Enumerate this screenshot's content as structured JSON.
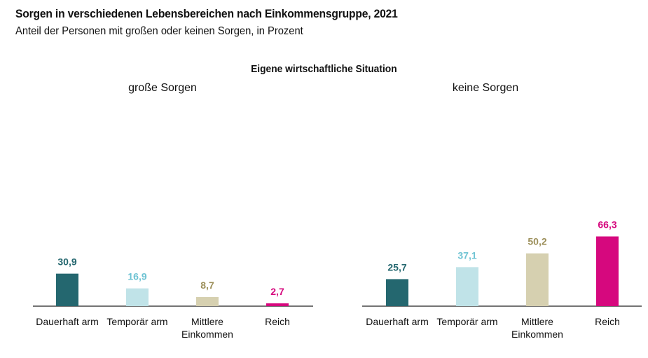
{
  "title": "Sorgen in verschiedenen Lebensbereichen nach Einkommensgruppe, 2021",
  "subtitle": "Anteil der Personen mit großen oder keinen Sorgen, in Prozent",
  "section_title": "Eigene wirtschaftliche Situation",
  "chart_data": [
    {
      "type": "bar",
      "title": "große Sorgen",
      "categories": [
        "Dauerhaft arm",
        "Temporär arm",
        "Mittlere Einkommen",
        "Reich"
      ],
      "values": [
        30.9,
        16.9,
        8.7,
        2.7
      ],
      "value_labels": [
        "30,9",
        "16,9",
        "8,7",
        "2,7"
      ],
      "colors": [
        "#24676f",
        "#c0e3e8",
        "#d6d0b0",
        "#d6087e"
      ],
      "label_colors": [
        "#24676f",
        "#6ec3d3",
        "#9c8f5a",
        "#d6087e"
      ],
      "ylim": [
        0,
        70
      ],
      "grid": false
    },
    {
      "type": "bar",
      "title": "keine Sorgen",
      "categories": [
        "Dauerhaft arm",
        "Temporär arm",
        "Mittlere Einkommen",
        "Reich"
      ],
      "values": [
        25.7,
        37.1,
        50.2,
        66.3
      ],
      "value_labels": [
        "25,7",
        "37,1",
        "50,2",
        "66,3"
      ],
      "colors": [
        "#24676f",
        "#c0e3e8",
        "#d6d0b0",
        "#d6087e"
      ],
      "label_colors": [
        "#24676f",
        "#6ec3d3",
        "#9c8f5a",
        "#d6087e"
      ],
      "ylim": [
        0,
        70
      ],
      "grid": false
    }
  ]
}
